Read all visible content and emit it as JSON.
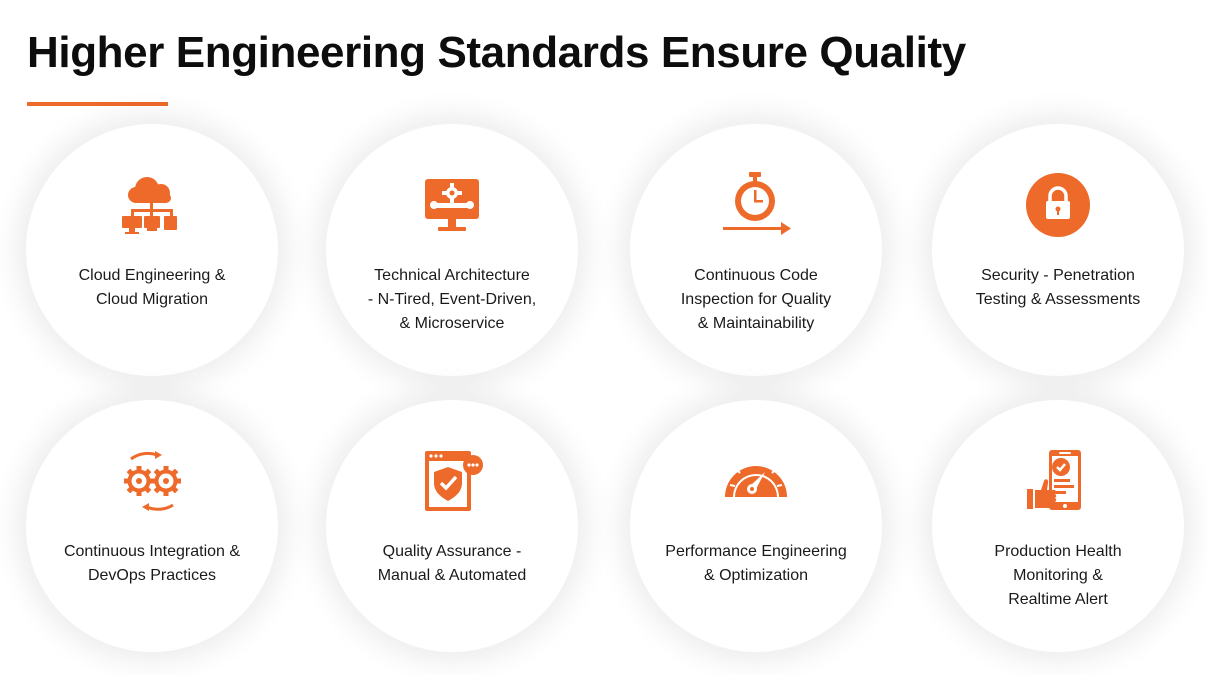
{
  "title": "Higher Engineering Standards Ensure Quality",
  "colors": {
    "accent": "#ee6a2b",
    "text": "#1a1a1a",
    "card": "#ffffff"
  },
  "cards": [
    {
      "icon": "cloud-network-icon",
      "lines": [
        "Cloud Engineering &",
        "Cloud Migration"
      ]
    },
    {
      "icon": "monitor-gear-tools-icon",
      "lines": [
        "Technical Architecture",
        "- N-Tired, Event-Driven,",
        "& Microservice"
      ]
    },
    {
      "icon": "stopwatch-arrow-icon",
      "lines": [
        "Continuous Code",
        "Inspection for Quality",
        "& Maintainability"
      ]
    },
    {
      "icon": "padlock-icon",
      "lines": [
        "Security - Penetration",
        "Testing & Assessments"
      ]
    },
    {
      "icon": "gears-cycle-icon",
      "lines": [
        "Continuous Integration &",
        "DevOps Practices"
      ]
    },
    {
      "icon": "shield-check-window-icon",
      "lines": [
        "Quality Assurance -",
        "Manual & Automated"
      ]
    },
    {
      "icon": "speedometer-icon",
      "lines": [
        "Performance Engineering",
        "& Optimization"
      ]
    },
    {
      "icon": "phone-health-check-icon",
      "lines": [
        "Production Health",
        "Monitoring &",
        "Realtime Alert"
      ]
    }
  ]
}
